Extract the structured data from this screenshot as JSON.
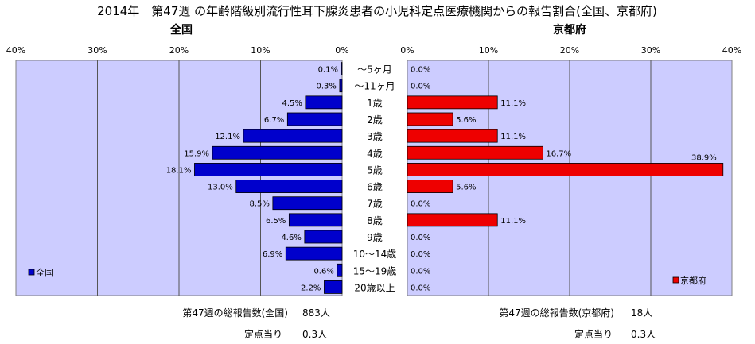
{
  "title": "2014年　第47週 の年齢階級別流行性耳下腺炎患者の小児科定点医療機関からの報告割合(全国、京都府)",
  "chart_data": [
    {
      "type": "bar",
      "orientation": "horizontal",
      "direction": "right-to-left",
      "title": "全国",
      "categories": [
        "～5ヶ月",
        "～11ヶ月",
        "1歳",
        "2歳",
        "3歳",
        "4歳",
        "5歳",
        "6歳",
        "7歳",
        "8歳",
        "9歳",
        "10～14歳",
        "15～19歳",
        "20歳以上"
      ],
      "series": [
        {
          "name": "全国",
          "values": [
            0.1,
            0.3,
            4.5,
            6.7,
            12.1,
            15.9,
            18.1,
            13.0,
            8.5,
            6.5,
            4.6,
            6.9,
            0.6,
            2.2
          ],
          "labels": [
            "0.1%",
            "0.3%",
            "4.5%",
            "6.7%",
            "12.1%",
            "15.9%",
            "18.1%",
            "13.0%",
            "8.5%",
            "6.5%",
            "4.6%",
            "6.9%",
            "0.6%",
            "2.2%"
          ],
          "color": "#0000cc"
        }
      ],
      "xlim": [
        0,
        40
      ],
      "ticks": [
        "40%",
        "30%",
        "20%",
        "10%",
        "0%"
      ],
      "grid": true,
      "legend": "bottom-left",
      "plot_background": "#ccccff"
    },
    {
      "type": "bar",
      "orientation": "horizontal",
      "direction": "left-to-right",
      "title": "京都府",
      "categories": [
        "～5ヶ月",
        "～11ヶ月",
        "1歳",
        "2歳",
        "3歳",
        "4歳",
        "5歳",
        "6歳",
        "7歳",
        "8歳",
        "9歳",
        "10～14歳",
        "15～19歳",
        "20歳以上"
      ],
      "series": [
        {
          "name": "京都府",
          "values": [
            0.0,
            0.0,
            11.1,
            5.6,
            11.1,
            16.7,
            38.9,
            5.6,
            0.0,
            11.1,
            0.0,
            0.0,
            0.0,
            0.0
          ],
          "labels": [
            "0.0%",
            "0.0%",
            "11.1%",
            "5.6%",
            "11.1%",
            "16.7%",
            "38.9%",
            "5.6%",
            "0.0%",
            "11.1%",
            "0.0%",
            "0.0%",
            "0.0%",
            "0.0%"
          ],
          "color": "#ee0000"
        }
      ],
      "xlim": [
        0,
        40
      ],
      "ticks": [
        "0%",
        "10%",
        "20%",
        "30%",
        "40%"
      ],
      "grid": true,
      "legend": "bottom-right",
      "plot_background": "#ccccff"
    }
  ],
  "footer": {
    "national": {
      "total_label": "第47週の総報告数(全国)",
      "total_value": "883人",
      "per_site_label": "定点当り",
      "per_site_value": "0.3人"
    },
    "kyoto": {
      "total_label": "第47週の総報告数(京都府)",
      "total_value": "18人",
      "per_site_label": "定点当り",
      "per_site_value": "0.3人"
    }
  }
}
